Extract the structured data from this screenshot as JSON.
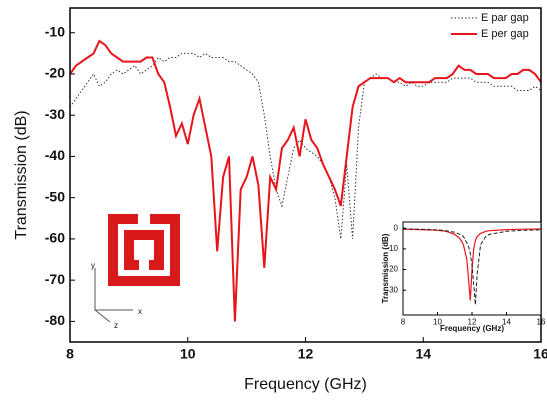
{
  "chart_data": [
    {
      "type": "line",
      "xlabel": "Frequency (GHz)",
      "ylabel": "Transmission (dB)",
      "xlim": [
        8,
        16
      ],
      "ylim": [
        -85,
        -4
      ],
      "xticks": [
        8,
        10,
        12,
        14,
        16
      ],
      "yticks": [
        -80,
        -70,
        -60,
        -50,
        -40,
        -30,
        -20,
        -10
      ],
      "legend": "upper right",
      "annotations": [
        "y",
        "x",
        "z"
      ],
      "x": [
        8.0,
        8.1,
        8.2,
        8.3,
        8.4,
        8.5,
        8.6,
        8.7,
        8.8,
        8.9,
        9.0,
        9.1,
        9.2,
        9.3,
        9.4,
        9.5,
        9.6,
        9.7,
        9.8,
        9.9,
        10.0,
        10.1,
        10.2,
        10.3,
        10.4,
        10.5,
        10.6,
        10.7,
        10.8,
        10.9,
        11.0,
        11.1,
        11.2,
        11.3,
        11.4,
        11.5,
        11.6,
        11.7,
        11.8,
        11.9,
        12.0,
        12.1,
        12.2,
        12.3,
        12.4,
        12.5,
        12.6,
        12.7,
        12.8,
        12.9,
        13.0,
        13.1,
        13.2,
        13.3,
        13.4,
        13.5,
        13.6,
        13.7,
        13.8,
        13.9,
        14.0,
        14.1,
        14.2,
        14.3,
        14.4,
        14.5,
        14.6,
        14.7,
        14.8,
        14.9,
        15.0,
        15.1,
        15.2,
        15.3,
        15.4,
        15.5,
        15.6,
        15.7,
        15.8,
        15.9,
        16.0
      ],
      "series": [
        {
          "name": "E par gap",
          "color": "#333333",
          "style": "dotted",
          "values": [
            -28,
            -26,
            -24,
            -22,
            -20,
            -23,
            -22,
            -20,
            -19,
            -20,
            -19,
            -18,
            -20,
            -19,
            -18,
            -16,
            -17,
            -16,
            -16,
            -15,
            -15,
            -15,
            -16,
            -15,
            -16,
            -16,
            -16,
            -17,
            -17,
            -18,
            -19,
            -20,
            -22,
            -30,
            -40,
            -48,
            -52,
            -45,
            -38,
            -36,
            -38,
            -39,
            -40,
            -42,
            -45,
            -50,
            -60,
            -42,
            -60,
            -33,
            -22,
            -21,
            -20,
            -21,
            -21,
            -22,
            -22,
            -23,
            -22,
            -23,
            -23,
            -22,
            -22,
            -22,
            -22,
            -21,
            -21,
            -21,
            -21,
            -22,
            -22,
            -22,
            -23,
            -23,
            -23,
            -23,
            -24,
            -24,
            -24,
            -23,
            -24
          ]
        },
        {
          "name": "E per gap",
          "color": "#e8141b",
          "style": "solid",
          "values": [
            -20,
            -18,
            -17,
            -16,
            -15,
            -12,
            -13,
            -15,
            -16,
            -17,
            -17,
            -17,
            -17,
            -16,
            -16,
            -20,
            -22,
            -28,
            -35,
            -32,
            -37,
            -30,
            -26,
            -33,
            -40,
            -63,
            -45,
            -40,
            -80,
            -48,
            -45,
            -40,
            -47,
            -67,
            -45,
            -48,
            -38,
            -36,
            -33,
            -40,
            -31,
            -36,
            -38,
            -42,
            -45,
            -48,
            -52,
            -40,
            -28,
            -23,
            -22,
            -21,
            -21,
            -21,
            -21,
            -22,
            -21,
            -22,
            -22,
            -22,
            -22,
            -22,
            -21,
            -21,
            -21,
            -20,
            -18,
            -19,
            -19,
            -20,
            -20,
            -20,
            -21,
            -21,
            -21,
            -20,
            -20,
            -19,
            -19,
            -20,
            -22
          ]
        }
      ]
    },
    {
      "type": "line",
      "xlabel": "Frequency (GHz)",
      "ylabel": "Transmission (dB)",
      "xlim": [
        8,
        16
      ],
      "ylim": [
        -42,
        3
      ],
      "xticks": [
        8,
        10,
        12,
        14,
        16
      ],
      "yticks": [
        0,
        -10,
        -20,
        -30
      ],
      "x": [
        8,
        9,
        10,
        10.5,
        11,
        11.3,
        11.5,
        11.7,
        11.8,
        11.9,
        12.0,
        12.1,
        12.2,
        12.3,
        12.5,
        12.8,
        13,
        14,
        15,
        16
      ],
      "series": [
        {
          "color": "#e8141b",
          "style": "solid",
          "values": [
            -0.5,
            -0.7,
            -1,
            -1.5,
            -3,
            -5,
            -8,
            -15,
            -25,
            -35,
            -20,
            -10,
            -6,
            -4,
            -2.5,
            -1.5,
            -1.2,
            -0.7,
            -0.5,
            -0.4
          ]
        },
        {
          "color": "#222222",
          "style": "dashed",
          "values": [
            -0.3,
            -0.5,
            -0.8,
            -1.2,
            -2,
            -3,
            -4,
            -7,
            -9,
            -12,
            -18,
            -27,
            -37,
            -22,
            -8,
            -4,
            -3,
            -1.5,
            -1,
            -0.8
          ]
        }
      ]
    }
  ]
}
